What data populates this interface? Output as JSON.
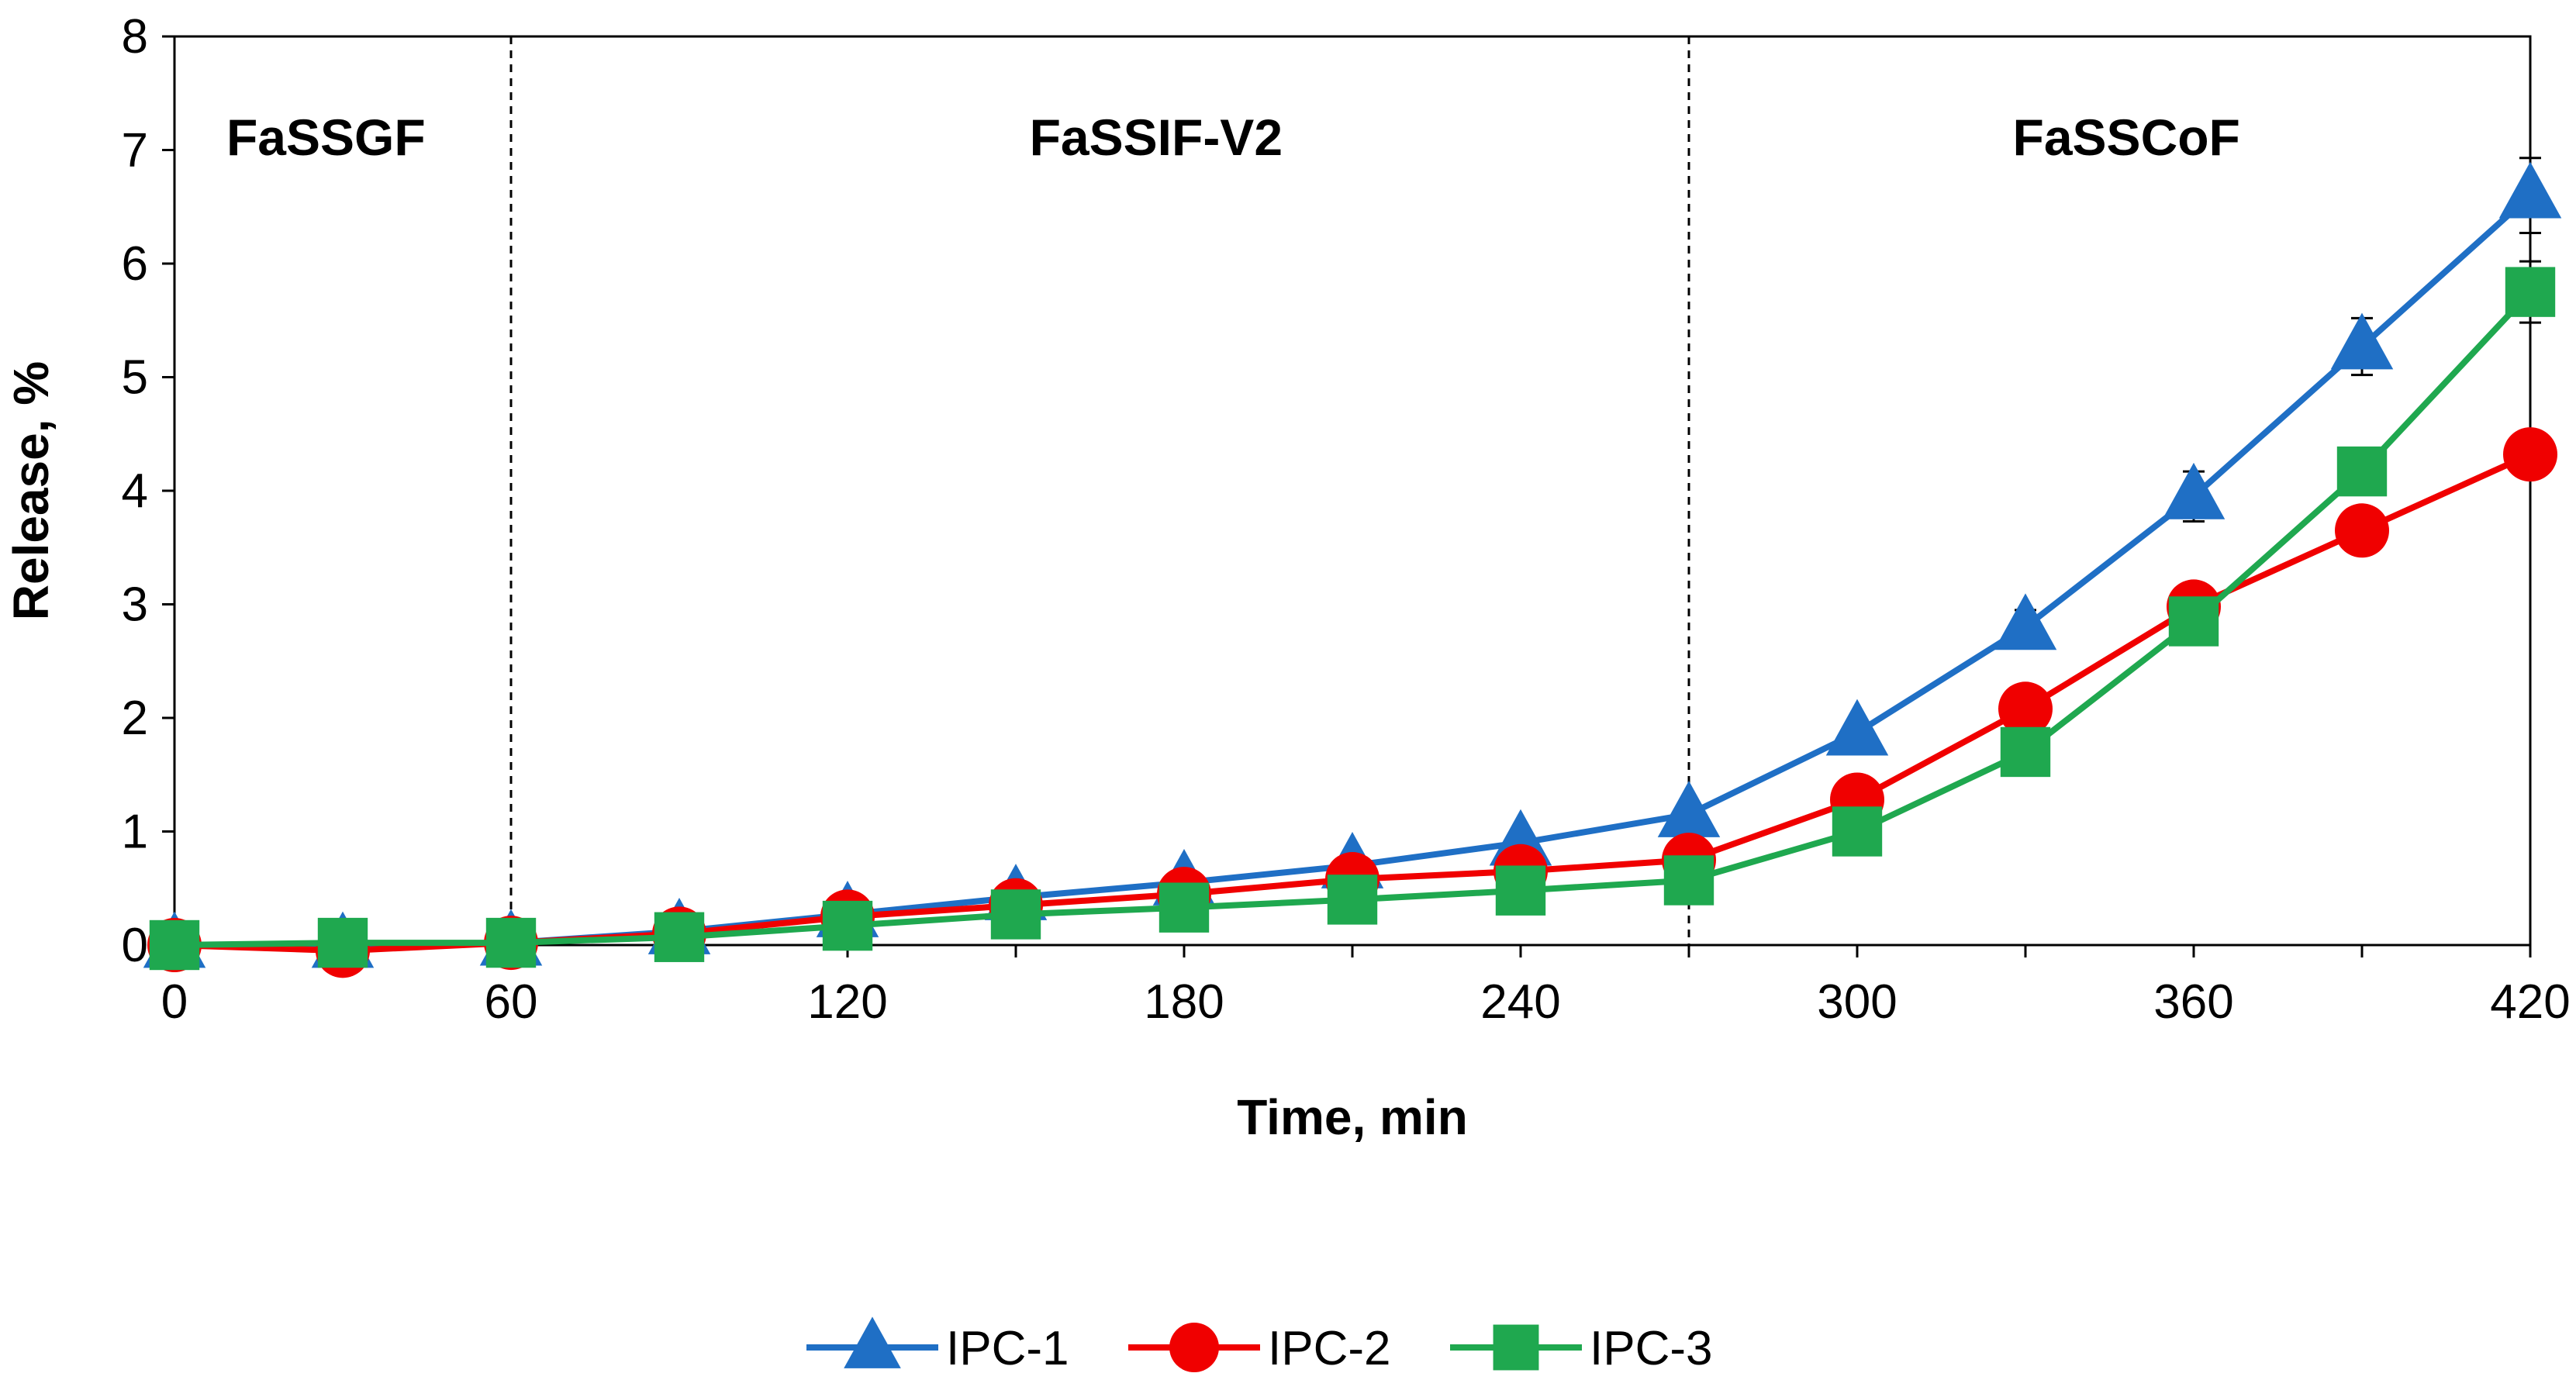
{
  "chart_data": {
    "type": "line",
    "title": "",
    "xlabel": "Time, min",
    "ylabel": "Release, %",
    "xlim": [
      0,
      420
    ],
    "ylim": [
      0,
      8
    ],
    "x_ticks": [
      0,
      60,
      120,
      180,
      240,
      300,
      360,
      420
    ],
    "y_ticks": [
      0,
      1,
      2,
      3,
      4,
      5,
      6,
      7,
      8
    ],
    "grid": false,
    "legend_position": "bottom",
    "region_dividers": [
      60,
      270
    ],
    "regions": [
      {
        "label": "FaSSGF",
        "x_center": 27
      },
      {
        "label": "FaSSIF-V2",
        "x_center": 175
      },
      {
        "label": "FaSSCoF",
        "x_center": 348
      }
    ],
    "x": [
      0,
      30,
      60,
      90,
      120,
      150,
      180,
      210,
      240,
      270,
      300,
      330,
      360,
      390,
      420
    ],
    "series": [
      {
        "name": "IPC-1",
        "color": "#1F6FC5",
        "marker": "triangle",
        "values": [
          0,
          0,
          0.02,
          0.12,
          0.27,
          0.42,
          0.55,
          0.7,
          0.9,
          1.15,
          1.87,
          2.8,
          3.95,
          5.27,
          6.6
        ],
        "errors": [
          0,
          0,
          0,
          0,
          0,
          0,
          0,
          0,
          0,
          0,
          0.05,
          0.15,
          0.22,
          0.25,
          0.33
        ]
      },
      {
        "name": "IPC-2",
        "color": "#F00000",
        "marker": "circle",
        "values": [
          0,
          -0.05,
          0.02,
          0.1,
          0.25,
          0.35,
          0.45,
          0.58,
          0.65,
          0.75,
          1.28,
          2.08,
          2.98,
          3.65,
          4.32
        ],
        "errors": [
          0,
          0,
          0,
          0,
          0,
          0,
          0,
          0,
          0,
          0,
          0.05,
          0.08,
          0.1,
          0.1,
          0.12
        ]
      },
      {
        "name": "IPC-3",
        "color": "#1FA84F",
        "marker": "square",
        "values": [
          0,
          0.02,
          0.02,
          0.07,
          0.17,
          0.27,
          0.33,
          0.4,
          0.48,
          0.57,
          1.0,
          1.7,
          2.85,
          4.17,
          5.75
        ],
        "errors": [
          0,
          0,
          0,
          0,
          0,
          0,
          0,
          0,
          0,
          0,
          0.05,
          0.08,
          0.1,
          0.15,
          0.27
        ]
      }
    ]
  }
}
